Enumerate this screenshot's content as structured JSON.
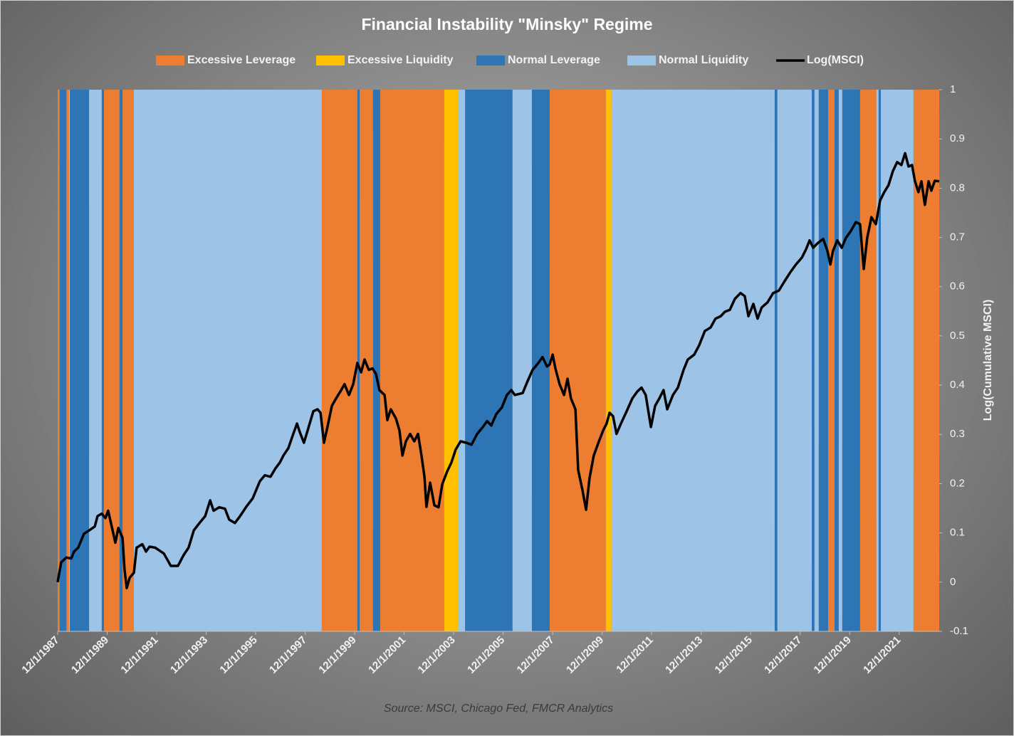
{
  "chart_data": {
    "type": "line",
    "title": "Financial Instability \"Minsky\" Regime",
    "source": "Source: MSCI, Chicago Fed, FMCR Analytics",
    "y2label": "Log(Cumulative MSCI)",
    "xlim": [
      1987.92,
      2023.54
    ],
    "xticks": [
      {
        "value": 1987.92,
        "label": "12/1/1987"
      },
      {
        "value": 1989.92,
        "label": "12/1/1989"
      },
      {
        "value": 1991.92,
        "label": "12/1/1991"
      },
      {
        "value": 1993.92,
        "label": "12/1/1993"
      },
      {
        "value": 1995.92,
        "label": "12/1/1995"
      },
      {
        "value": 1997.92,
        "label": "12/1/1997"
      },
      {
        "value": 1999.92,
        "label": "12/1/1999"
      },
      {
        "value": 2001.92,
        "label": "12/1/2001"
      },
      {
        "value": 2003.92,
        "label": "12/1/2003"
      },
      {
        "value": 2005.92,
        "label": "12/1/2005"
      },
      {
        "value": 2007.92,
        "label": "12/1/2007"
      },
      {
        "value": 2009.92,
        "label": "12/1/2009"
      },
      {
        "value": 2011.92,
        "label": "12/1/2011"
      },
      {
        "value": 2013.92,
        "label": "12/1/2013"
      },
      {
        "value": 2015.92,
        "label": "12/1/2015"
      },
      {
        "value": 2017.92,
        "label": "12/1/2017"
      },
      {
        "value": 2019.92,
        "label": "12/1/2019"
      },
      {
        "value": 2021.92,
        "label": "12/1/2021"
      }
    ],
    "y2lim": [
      -0.1,
      1
    ],
    "y2ticks": [
      1,
      0.9,
      0.8,
      0.7,
      0.6,
      0.5,
      0.4,
      0.3,
      0.2,
      0.1,
      0,
      -0.1
    ],
    "regimes": [
      {
        "name": "Excessive Leverage",
        "color": "#ed7d31",
        "periods": [
          [
            1987.92,
            1988.0
          ],
          [
            1988.27,
            1988.38
          ],
          [
            1989.79,
            1990.42
          ],
          [
            1990.54,
            1991.0
          ],
          [
            1998.59,
            2000.03
          ],
          [
            2000.12,
            2000.66
          ],
          [
            2000.95,
            2003.54
          ],
          [
            2007.8,
            2010.07
          ],
          [
            2019.05,
            2019.31
          ],
          [
            2020.34,
            2021.0
          ],
          [
            2022.5,
            2023.54
          ]
        ]
      },
      {
        "name": "Excessive Liquidity",
        "color": "#ffc000",
        "periods": [
          [
            2003.54,
            2004.12
          ],
          [
            2010.07,
            2010.3
          ]
        ]
      },
      {
        "name": "Normal Leverage",
        "color": "#2e75b6",
        "periods": [
          [
            1988.0,
            1988.27
          ],
          [
            1988.41,
            1989.19
          ],
          [
            1989.7,
            1989.79
          ],
          [
            1990.42,
            1990.54
          ],
          [
            2000.03,
            2000.12
          ],
          [
            2000.66,
            2000.95
          ],
          [
            2004.38,
            2006.3
          ],
          [
            2007.08,
            2007.8
          ],
          [
            2016.89,
            2017.0
          ],
          [
            2018.39,
            2018.5
          ],
          [
            2018.67,
            2019.05
          ],
          [
            2019.31,
            2019.48
          ],
          [
            2019.62,
            2020.34
          ],
          [
            2021.09,
            2021.18
          ]
        ]
      },
      {
        "name": "Normal Liquidity",
        "color": "#9dc3e6",
        "periods": [
          [
            1988.38,
            1988.41
          ],
          [
            1989.19,
            1989.7
          ],
          [
            1991.0,
            1998.59
          ],
          [
            2004.12,
            2004.38
          ],
          [
            2006.3,
            2007.08
          ],
          [
            2010.3,
            2016.89
          ],
          [
            2017.0,
            2018.39
          ],
          [
            2018.5,
            2018.67
          ],
          [
            2019.48,
            2019.62
          ],
          [
            2021.0,
            2021.09
          ],
          [
            2021.18,
            2022.5
          ]
        ]
      }
    ],
    "series": [
      {
        "name": "Log(MSCI)",
        "color": "#000000",
        "axis": "y2",
        "x": [
          1987.92,
          1988.06,
          1988.27,
          1988.47,
          1988.58,
          1988.75,
          1988.98,
          1989.19,
          1989.42,
          1989.53,
          1989.7,
          1989.85,
          1989.96,
          1990.14,
          1990.25,
          1990.37,
          1990.54,
          1990.62,
          1990.71,
          1990.83,
          1991.0,
          1991.11,
          1991.34,
          1991.49,
          1991.63,
          1991.86,
          1991.98,
          1992.21,
          1992.38,
          1992.49,
          1992.78,
          1993.01,
          1993.21,
          1993.42,
          1993.65,
          1993.88,
          1994.08,
          1994.22,
          1994.45,
          1994.68,
          1994.85,
          1995.08,
          1995.29,
          1995.54,
          1995.8,
          1996.09,
          1996.29,
          1996.52,
          1996.72,
          1996.9,
          1997.04,
          1997.24,
          1997.44,
          1997.59,
          1997.7,
          1997.87,
          1998.02,
          1998.25,
          1998.42,
          1998.54,
          1998.68,
          1998.82,
          1999.0,
          1999.17,
          1999.34,
          1999.51,
          1999.69,
          1999.86,
          2000.03,
          2000.18,
          2000.32,
          2000.49,
          2000.64,
          2000.78,
          2000.92,
          2001.13,
          2001.24,
          2001.38,
          2001.59,
          2001.73,
          2001.85,
          2001.99,
          2002.16,
          2002.33,
          2002.48,
          2002.62,
          2002.74,
          2002.82,
          2002.97,
          2003.14,
          2003.31,
          2003.46,
          2003.66,
          2003.83,
          2004.0,
          2004.2,
          2004.43,
          2004.64,
          2004.87,
          2005.1,
          2005.27,
          2005.44,
          2005.64,
          2005.87,
          2006.07,
          2006.25,
          2006.39,
          2006.71,
          2006.88,
          2007.11,
          2007.34,
          2007.51,
          2007.69,
          2007.8,
          2007.92,
          2008.03,
          2008.2,
          2008.38,
          2008.52,
          2008.66,
          2008.84,
          2008.95,
          2009.12,
          2009.27,
          2009.41,
          2009.58,
          2009.79,
          2009.96,
          2010.1,
          2010.22,
          2010.36,
          2010.5,
          2010.68,
          2010.91,
          2011.14,
          2011.34,
          2011.51,
          2011.68,
          2011.89,
          2012.06,
          2012.23,
          2012.4,
          2012.55,
          2012.78,
          2012.98,
          2013.21,
          2013.38,
          2013.64,
          2013.84,
          2014.07,
          2014.3,
          2014.5,
          2014.71,
          2014.88,
          2015.08,
          2015.28,
          2015.51,
          2015.68,
          2015.83,
          2016.03,
          2016.2,
          2016.37,
          2016.6,
          2016.83,
          2017.06,
          2017.29,
          2017.52,
          2017.75,
          2017.99,
          2018.16,
          2018.3,
          2018.45,
          2018.62,
          2018.85,
          2019.02,
          2019.14,
          2019.25,
          2019.42,
          2019.6,
          2019.77,
          2019.97,
          2020.17,
          2020.34,
          2020.49,
          2020.63,
          2020.8,
          2020.98,
          2021.15,
          2021.32,
          2021.49,
          2021.67,
          2021.84,
          2022.01,
          2022.16,
          2022.3,
          2022.44,
          2022.56,
          2022.7,
          2022.82,
          2022.96,
          2023.11,
          2023.22,
          2023.36,
          2023.54
        ],
        "values": [
          0.0,
          0.04,
          0.05,
          0.048,
          0.062,
          0.07,
          0.098,
          0.105,
          0.113,
          0.134,
          0.139,
          0.13,
          0.145,
          0.105,
          0.08,
          0.11,
          0.09,
          0.026,
          -0.012,
          0.009,
          0.019,
          0.07,
          0.077,
          0.062,
          0.072,
          0.07,
          0.066,
          0.058,
          0.043,
          0.033,
          0.033,
          0.055,
          0.07,
          0.105,
          0.12,
          0.134,
          0.166,
          0.145,
          0.152,
          0.149,
          0.127,
          0.12,
          0.134,
          0.153,
          0.17,
          0.205,
          0.217,
          0.214,
          0.231,
          0.243,
          0.257,
          0.272,
          0.301,
          0.322,
          0.305,
          0.283,
          0.308,
          0.347,
          0.351,
          0.344,
          0.283,
          0.315,
          0.358,
          0.373,
          0.387,
          0.402,
          0.38,
          0.402,
          0.445,
          0.426,
          0.452,
          0.431,
          0.434,
          0.423,
          0.39,
          0.38,
          0.329,
          0.351,
          0.332,
          0.308,
          0.257,
          0.286,
          0.301,
          0.286,
          0.301,
          0.257,
          0.214,
          0.153,
          0.202,
          0.156,
          0.152,
          0.199,
          0.225,
          0.243,
          0.269,
          0.286,
          0.283,
          0.279,
          0.301,
          0.315,
          0.327,
          0.318,
          0.341,
          0.355,
          0.38,
          0.39,
          0.38,
          0.384,
          0.405,
          0.431,
          0.445,
          0.457,
          0.438,
          0.442,
          0.462,
          0.434,
          0.402,
          0.38,
          0.413,
          0.373,
          0.351,
          0.228,
          0.188,
          0.147,
          0.211,
          0.257,
          0.286,
          0.308,
          0.322,
          0.344,
          0.337,
          0.301,
          0.322,
          0.347,
          0.373,
          0.387,
          0.395,
          0.38,
          0.315,
          0.358,
          0.373,
          0.39,
          0.351,
          0.38,
          0.395,
          0.431,
          0.452,
          0.462,
          0.481,
          0.51,
          0.517,
          0.535,
          0.54,
          0.549,
          0.553,
          0.575,
          0.587,
          0.581,
          0.54,
          0.565,
          0.535,
          0.558,
          0.568,
          0.587,
          0.592,
          0.611,
          0.629,
          0.645,
          0.659,
          0.676,
          0.694,
          0.679,
          0.688,
          0.697,
          0.673,
          0.645,
          0.673,
          0.694,
          0.679,
          0.699,
          0.713,
          0.731,
          0.727,
          0.636,
          0.699,
          0.741,
          0.727,
          0.775,
          0.792,
          0.806,
          0.835,
          0.853,
          0.847,
          0.871,
          0.844,
          0.847,
          0.814,
          0.792,
          0.814,
          0.766,
          0.814,
          0.795,
          0.815,
          0.814
        ]
      }
    ]
  }
}
